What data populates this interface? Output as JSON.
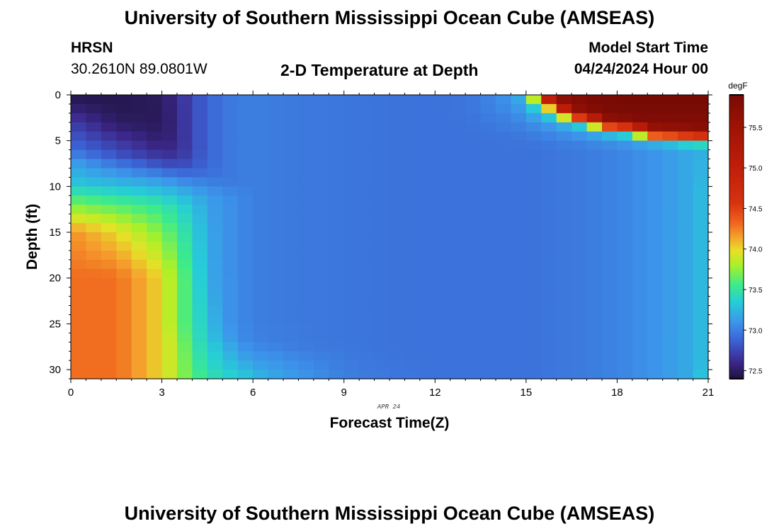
{
  "header": {
    "title_top": "University of Southern Mississippi Ocean Cube (AMSEAS)",
    "title_bottom": "University of Southern Mississippi Ocean Cube (AMSEAS)",
    "station": "HRSN",
    "coords": "30.2610N  89.0801W",
    "model_start_label": "Model Start Time",
    "model_start_value": "04/24/2024 Hour 00"
  },
  "chart_data": {
    "type": "heatmap",
    "title": "2-D Temperature at Depth",
    "xlabel": "Forecast Time(Z)",
    "ylabel": "Depth (ft)",
    "date_label": "APR 24",
    "xlim": [
      0,
      21
    ],
    "ylim": [
      0,
      31
    ],
    "x_ticks": [
      0,
      3,
      6,
      9,
      12,
      15,
      18,
      21
    ],
    "y_ticks": [
      0,
      5,
      10,
      15,
      20,
      25,
      30
    ],
    "colorbar": {
      "unit": "degF",
      "min": 72.4,
      "max": 75.9,
      "ticks": [
        72.5,
        73.0,
        73.5,
        74.0,
        74.5,
        75.0,
        75.5
      ],
      "tick_labels": [
        "72.5",
        "73.0",
        "73.5",
        "74.0",
        "74.5",
        "75.0",
        "75.5"
      ]
    },
    "grid": {
      "x_steps": 42,
      "y_steps": 31,
      "x_step": 0.5,
      "y_step": 1.0
    },
    "anchors": {
      "times": [
        0,
        1.5,
        3,
        3.5,
        4,
        4.5,
        5,
        5.5,
        6,
        6.5,
        7,
        8,
        9,
        10,
        12,
        13,
        13.5,
        14,
        14.5,
        15,
        15.5,
        16,
        16.5,
        17,
        17.5,
        18,
        18.5,
        19,
        20,
        20.5,
        21
      ],
      "depths": [
        0,
        1,
        2,
        3,
        4,
        5,
        6,
        7,
        8,
        9,
        10,
        11,
        12,
        15,
        20,
        25,
        27,
        28,
        29,
        30,
        31
      ],
      "temps": [
        [
          72.43,
          72.45,
          72.5,
          72.62,
          72.75,
          72.88,
          72.95,
          72.98,
          73.0,
          72.99,
          72.98,
          72.97,
          72.96,
          72.95,
          72.94,
          72.95,
          72.99,
          73.05,
          73.12,
          73.3,
          75.2,
          75.7,
          75.8,
          75.85,
          75.9,
          75.9,
          75.9,
          75.9,
          75.9,
          75.9,
          75.9
        ],
        [
          72.5,
          72.45,
          72.48,
          72.62,
          72.75,
          72.88,
          72.95,
          72.98,
          73.0,
          72.99,
          72.98,
          72.97,
          72.96,
          72.95,
          72.94,
          72.95,
          72.99,
          73.03,
          73.08,
          73.2,
          73.7,
          75.5,
          75.7,
          75.8,
          75.85,
          75.9,
          75.9,
          75.9,
          75.9,
          75.9,
          75.9
        ],
        [
          72.6,
          72.47,
          72.48,
          72.6,
          72.75,
          72.88,
          72.95,
          72.98,
          73.0,
          72.99,
          72.98,
          72.97,
          72.96,
          72.95,
          72.94,
          72.95,
          72.98,
          73.0,
          73.05,
          73.12,
          73.3,
          73.6,
          75.5,
          75.7,
          75.8,
          75.85,
          75.85,
          75.85,
          75.85,
          75.85,
          75.85
        ],
        [
          72.7,
          72.5,
          72.48,
          72.6,
          72.75,
          72.88,
          72.95,
          72.98,
          73.0,
          72.99,
          72.98,
          72.97,
          72.96,
          72.95,
          72.94,
          72.94,
          72.96,
          72.98,
          73.0,
          73.05,
          73.12,
          73.2,
          73.35,
          73.6,
          75.5,
          75.6,
          75.7,
          75.8,
          75.8,
          75.8,
          75.8
        ],
        [
          72.78,
          72.58,
          72.5,
          72.6,
          72.75,
          72.88,
          72.95,
          72.98,
          73.0,
          72.99,
          72.98,
          72.97,
          72.96,
          72.95,
          72.94,
          72.94,
          72.95,
          72.96,
          72.97,
          72.99,
          73.02,
          73.07,
          73.12,
          73.2,
          73.3,
          73.45,
          73.6,
          75.4,
          75.5,
          75.6,
          75.7
        ],
        [
          72.85,
          72.68,
          72.53,
          72.6,
          72.75,
          72.88,
          72.95,
          72.98,
          73.0,
          72.99,
          72.98,
          72.97,
          72.96,
          72.95,
          72.94,
          72.94,
          72.94,
          72.95,
          72.95,
          72.96,
          72.98,
          73.0,
          73.02,
          73.05,
          73.08,
          73.12,
          73.18,
          73.25,
          73.45,
          73.6,
          73.6
        ],
        [
          72.93,
          72.75,
          72.6,
          72.62,
          72.75,
          72.88,
          72.95,
          72.98,
          73.0,
          72.99,
          72.98,
          72.97,
          72.96,
          72.95,
          72.94,
          72.94,
          72.94,
          72.94,
          72.94,
          72.94,
          72.95,
          72.96,
          72.97,
          72.98,
          73.0,
          73.02,
          73.05,
          73.08,
          73.15,
          73.2,
          73.2
        ],
        [
          73.1,
          72.85,
          72.7,
          72.68,
          72.78,
          72.88,
          72.95,
          72.98,
          73.0,
          72.99,
          72.98,
          72.97,
          72.96,
          72.95,
          72.94,
          72.94,
          72.94,
          72.94,
          72.94,
          72.94,
          72.95,
          72.96,
          72.97,
          72.98,
          73.0,
          73.02,
          73.05,
          73.08,
          73.15,
          73.2,
          73.25
        ],
        [
          73.2,
          73.05,
          72.85,
          72.8,
          72.82,
          72.9,
          72.95,
          72.98,
          73.0,
          72.99,
          72.98,
          72.97,
          72.96,
          72.95,
          72.94,
          72.94,
          72.94,
          72.94,
          72.94,
          72.94,
          72.95,
          72.96,
          72.97,
          72.98,
          73.0,
          73.02,
          73.05,
          73.08,
          73.15,
          73.2,
          73.25
        ],
        [
          73.25,
          73.15,
          73.08,
          73.0,
          72.98,
          72.95,
          72.96,
          72.98,
          73.0,
          72.99,
          72.98,
          72.97,
          72.96,
          72.95,
          72.94,
          72.94,
          72.94,
          72.94,
          72.94,
          72.94,
          72.95,
          72.96,
          72.97,
          72.98,
          73.0,
          73.02,
          73.05,
          73.08,
          73.15,
          73.2,
          73.25
        ],
        [
          73.35,
          73.3,
          73.2,
          73.15,
          73.1,
          73.05,
          73.0,
          72.99,
          73.0,
          72.99,
          72.98,
          72.97,
          72.96,
          72.95,
          72.94,
          72.94,
          72.94,
          72.94,
          72.94,
          72.94,
          72.95,
          72.96,
          72.97,
          72.98,
          73.0,
          73.02,
          73.05,
          73.08,
          73.15,
          73.2,
          73.3
        ],
        [
          73.55,
          73.45,
          73.35,
          73.28,
          73.2,
          73.12,
          73.08,
          73.05,
          73.0,
          72.99,
          72.98,
          72.97,
          72.96,
          72.95,
          72.94,
          72.94,
          72.94,
          72.94,
          72.94,
          72.94,
          72.95,
          72.96,
          72.97,
          72.98,
          73.0,
          73.02,
          73.05,
          73.08,
          73.15,
          73.2,
          73.3
        ],
        [
          73.7,
          73.6,
          73.5,
          73.4,
          73.3,
          73.15,
          73.1,
          73.05,
          73.0,
          72.99,
          72.98,
          72.97,
          72.96,
          72.95,
          72.94,
          72.94,
          72.94,
          72.94,
          72.94,
          72.94,
          72.95,
          72.96,
          72.97,
          72.98,
          73.0,
          73.02,
          73.05,
          73.08,
          73.15,
          73.2,
          73.3
        ],
        [
          74.2,
          74.0,
          73.7,
          73.55,
          73.4,
          73.18,
          73.1,
          73.05,
          73.0,
          72.99,
          72.98,
          72.97,
          72.96,
          72.95,
          72.94,
          72.94,
          72.94,
          72.94,
          72.94,
          72.94,
          72.95,
          72.96,
          72.97,
          72.98,
          73.0,
          73.02,
          73.05,
          73.08,
          73.15,
          73.2,
          73.3
        ],
        [
          74.3,
          74.3,
          74.0,
          73.7,
          73.5,
          73.2,
          73.1,
          73.05,
          73.0,
          72.99,
          72.98,
          72.97,
          72.96,
          72.95,
          72.94,
          72.94,
          72.94,
          72.94,
          72.94,
          72.94,
          72.95,
          72.96,
          72.97,
          72.98,
          73.0,
          73.02,
          73.05,
          73.08,
          73.15,
          73.2,
          73.3
        ],
        [
          74.3,
          74.3,
          74.0,
          73.7,
          73.5,
          73.3,
          73.12,
          73.05,
          73.0,
          72.99,
          72.98,
          72.97,
          72.96,
          72.95,
          72.94,
          72.94,
          72.94,
          72.94,
          72.94,
          72.94,
          72.95,
          72.96,
          72.97,
          72.98,
          73.0,
          73.02,
          73.05,
          73.08,
          73.15,
          73.2,
          73.3
        ],
        [
          74.3,
          74.3,
          74.0,
          73.8,
          73.5,
          73.35,
          73.2,
          73.08,
          73.02,
          73.0,
          72.99,
          72.97,
          72.96,
          72.95,
          72.94,
          72.94,
          72.94,
          72.94,
          72.94,
          72.94,
          72.95,
          72.96,
          72.97,
          72.98,
          73.0,
          73.02,
          73.05,
          73.08,
          73.15,
          73.2,
          73.3
        ],
        [
          74.3,
          74.3,
          74.0,
          73.8,
          73.55,
          73.4,
          73.3,
          73.15,
          73.08,
          73.05,
          73.02,
          72.99,
          72.97,
          72.95,
          72.94,
          72.94,
          72.94,
          72.94,
          72.94,
          72.94,
          72.95,
          72.96,
          72.97,
          72.98,
          73.0,
          73.02,
          73.05,
          73.08,
          73.15,
          73.2,
          73.3
        ],
        [
          74.3,
          74.3,
          74.0,
          73.8,
          73.55,
          73.4,
          73.3,
          73.2,
          73.12,
          73.1,
          73.08,
          73.02,
          72.98,
          72.96,
          72.94,
          72.94,
          72.94,
          72.94,
          72.94,
          72.94,
          72.95,
          72.96,
          72.97,
          72.98,
          73.0,
          73.02,
          73.05,
          73.08,
          73.15,
          73.2,
          73.3
        ],
        [
          74.3,
          74.3,
          74.0,
          73.8,
          73.6,
          73.45,
          73.38,
          73.3,
          73.2,
          73.15,
          73.12,
          73.05,
          72.99,
          72.97,
          72.94,
          72.94,
          72.94,
          72.94,
          72.94,
          72.94,
          72.95,
          72.96,
          72.97,
          72.98,
          73.0,
          73.02,
          73.05,
          73.08,
          73.15,
          73.2,
          73.35
        ],
        [
          74.3,
          74.3,
          74.0,
          73.8,
          73.6,
          73.5,
          73.4,
          73.35,
          73.3,
          73.2,
          73.15,
          73.08,
          73.0,
          72.97,
          72.94,
          72.94,
          72.94,
          72.94,
          72.94,
          72.94,
          72.95,
          72.96,
          72.97,
          72.98,
          73.0,
          73.02,
          73.05,
          73.08,
          73.15,
          73.2,
          73.4
        ]
      ]
    }
  }
}
